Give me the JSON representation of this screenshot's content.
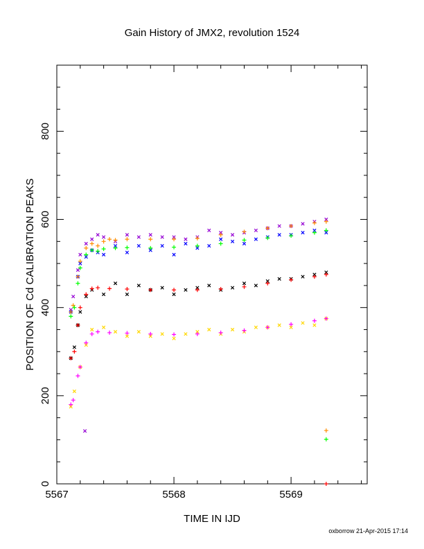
{
  "chart_data": {
    "type": "scatter",
    "title": "Gain History of JMX2, revolution 1524",
    "xlabel": "TIME IN IJD",
    "ylabel": "POSITION OF Cd CALIBRATION PEAKS",
    "xlim": [
      5567.0,
      5569.65
    ],
    "ylim": [
      0,
      950
    ],
    "x_ticks": [
      5567,
      5568,
      5569
    ],
    "y_ticks": [
      0,
      200,
      400,
      600,
      800
    ],
    "x_tick_labels": [
      "5567",
      "5568",
      "5569"
    ],
    "y_tick_labels": [
      "0",
      "200",
      "400",
      "600",
      "800"
    ],
    "grid": false,
    "series": [
      {
        "color": "#9400d3",
        "marker": "x",
        "points": [
          [
            5567.12,
            395
          ],
          [
            5567.14,
            425
          ],
          [
            5567.18,
            485
          ],
          [
            5567.2,
            520
          ],
          [
            5567.25,
            545
          ],
          [
            5567.3,
            555
          ],
          [
            5567.35,
            565
          ],
          [
            5567.4,
            560
          ],
          [
            5567.5,
            550
          ],
          [
            5567.6,
            565
          ],
          [
            5567.7,
            560
          ],
          [
            5567.8,
            565
          ],
          [
            5567.9,
            560
          ],
          [
            5568.0,
            560
          ],
          [
            5568.1,
            555
          ],
          [
            5568.2,
            560
          ],
          [
            5568.3,
            575
          ],
          [
            5568.4,
            570
          ],
          [
            5568.5,
            565
          ],
          [
            5568.6,
            570
          ],
          [
            5568.7,
            575
          ],
          [
            5568.8,
            580
          ],
          [
            5568.9,
            585
          ],
          [
            5569.0,
            585
          ],
          [
            5569.1,
            590
          ],
          [
            5569.2,
            595
          ],
          [
            5569.3,
            600
          ],
          [
            5567.24,
            120
          ]
        ]
      },
      {
        "color": "#0000ff",
        "marker": "x",
        "points": [
          [
            5567.12,
            390
          ],
          [
            5567.18,
            470
          ],
          [
            5567.2,
            500
          ],
          [
            5567.25,
            515
          ],
          [
            5567.3,
            530
          ],
          [
            5567.35,
            525
          ],
          [
            5567.4,
            520
          ],
          [
            5567.5,
            540
          ],
          [
            5567.6,
            525
          ],
          [
            5567.7,
            540
          ],
          [
            5567.8,
            530
          ],
          [
            5567.9,
            540
          ],
          [
            5568.0,
            520
          ],
          [
            5568.1,
            545
          ],
          [
            5568.2,
            535
          ],
          [
            5568.3,
            540
          ],
          [
            5568.4,
            555
          ],
          [
            5568.5,
            550
          ],
          [
            5568.6,
            545
          ],
          [
            5568.7,
            555
          ],
          [
            5568.8,
            560
          ],
          [
            5568.9,
            565
          ],
          [
            5569.0,
            565
          ],
          [
            5569.1,
            570
          ],
          [
            5569.2,
            575
          ],
          [
            5569.3,
            570
          ]
        ]
      },
      {
        "color": "#000000",
        "marker": "x",
        "points": [
          [
            5567.12,
            285
          ],
          [
            5567.15,
            310
          ],
          [
            5567.18,
            360
          ],
          [
            5567.2,
            390
          ],
          [
            5567.25,
            425
          ],
          [
            5567.3,
            440
          ],
          [
            5567.4,
            430
          ],
          [
            5567.5,
            455
          ],
          [
            5567.6,
            430
          ],
          [
            5567.7,
            450
          ],
          [
            5567.8,
            440
          ],
          [
            5567.9,
            445
          ],
          [
            5568.0,
            430
          ],
          [
            5568.1,
            440
          ],
          [
            5568.2,
            445
          ],
          [
            5568.3,
            450
          ],
          [
            5568.4,
            440
          ],
          [
            5568.5,
            445
          ],
          [
            5568.6,
            455
          ],
          [
            5568.7,
            450
          ],
          [
            5568.8,
            460
          ],
          [
            5568.9,
            465
          ],
          [
            5569.0,
            465
          ],
          [
            5569.1,
            470
          ],
          [
            5569.2,
            475
          ],
          [
            5569.3,
            480
          ]
        ]
      },
      {
        "color": "#ffd700",
        "marker": "x",
        "points": [
          [
            5567.12,
            175
          ],
          [
            5567.15,
            210
          ],
          [
            5567.2,
            265
          ],
          [
            5567.25,
            315
          ],
          [
            5567.3,
            350
          ],
          [
            5567.4,
            355
          ],
          [
            5567.5,
            345
          ],
          [
            5567.6,
            335
          ],
          [
            5567.7,
            345
          ],
          [
            5567.8,
            335
          ],
          [
            5567.9,
            340
          ],
          [
            5568.0,
            330
          ],
          [
            5568.1,
            340
          ],
          [
            5568.2,
            345
          ],
          [
            5568.3,
            350
          ],
          [
            5568.4,
            340
          ],
          [
            5568.5,
            350
          ],
          [
            5568.6,
            345
          ],
          [
            5568.7,
            355
          ],
          [
            5568.8,
            355
          ],
          [
            5568.9,
            360
          ],
          [
            5569.0,
            355
          ],
          [
            5569.1,
            365
          ],
          [
            5569.2,
            360
          ],
          [
            5569.3,
            375
          ]
        ]
      },
      {
        "color": "#ff8c00",
        "marker": "+",
        "points": [
          [
            5567.12,
            390
          ],
          [
            5567.14,
            405
          ],
          [
            5567.18,
            470
          ],
          [
            5567.2,
            505
          ],
          [
            5567.25,
            535
          ],
          [
            5567.3,
            545
          ],
          [
            5567.35,
            540
          ],
          [
            5567.4,
            550
          ],
          [
            5567.45,
            555
          ],
          [
            5567.5,
            553
          ],
          [
            5567.6,
            555
          ],
          [
            5567.8,
            555
          ],
          [
            5568.0,
            555
          ],
          [
            5568.2,
            557
          ],
          [
            5568.4,
            565
          ],
          [
            5568.6,
            572
          ],
          [
            5568.8,
            580
          ],
          [
            5569.0,
            585
          ],
          [
            5569.2,
            592
          ],
          [
            5569.3,
            595
          ],
          [
            5569.3,
            121
          ]
        ]
      },
      {
        "color": "#00ff00",
        "marker": "+",
        "points": [
          [
            5567.12,
            380
          ],
          [
            5567.15,
            400
          ],
          [
            5567.18,
            455
          ],
          [
            5567.2,
            490
          ],
          [
            5567.25,
            520
          ],
          [
            5567.3,
            530
          ],
          [
            5567.35,
            528
          ],
          [
            5567.4,
            533
          ],
          [
            5567.5,
            535
          ],
          [
            5567.6,
            536
          ],
          [
            5567.8,
            535
          ],
          [
            5568.0,
            537
          ],
          [
            5568.2,
            540
          ],
          [
            5568.4,
            545
          ],
          [
            5568.6,
            553
          ],
          [
            5568.8,
            558
          ],
          [
            5569.0,
            563
          ],
          [
            5569.2,
            570
          ],
          [
            5569.3,
            575
          ],
          [
            5569.3,
            101
          ]
        ]
      },
      {
        "color": "#ff0000",
        "marker": "+",
        "points": [
          [
            5567.12,
            285
          ],
          [
            5567.15,
            300
          ],
          [
            5567.18,
            360
          ],
          [
            5567.2,
            400
          ],
          [
            5567.25,
            430
          ],
          [
            5567.3,
            443
          ],
          [
            5567.35,
            445
          ],
          [
            5567.45,
            443
          ],
          [
            5567.6,
            442
          ],
          [
            5567.8,
            440
          ],
          [
            5568.0,
            440
          ],
          [
            5568.2,
            440
          ],
          [
            5568.4,
            442
          ],
          [
            5568.6,
            447
          ],
          [
            5568.8,
            455
          ],
          [
            5569.0,
            463
          ],
          [
            5569.2,
            470
          ],
          [
            5569.3,
            475
          ],
          [
            5569.3,
            0
          ]
        ]
      },
      {
        "color": "#ff00ff",
        "marker": "+",
        "points": [
          [
            5567.12,
            180
          ],
          [
            5567.14,
            190
          ],
          [
            5567.18,
            245
          ],
          [
            5567.2,
            265
          ],
          [
            5567.25,
            320
          ],
          [
            5567.3,
            340
          ],
          [
            5567.35,
            345
          ],
          [
            5567.45,
            343
          ],
          [
            5567.6,
            342
          ],
          [
            5567.8,
            340
          ],
          [
            5568.0,
            339
          ],
          [
            5568.2,
            340
          ],
          [
            5568.4,
            343
          ],
          [
            5568.6,
            348
          ],
          [
            5568.8,
            355
          ],
          [
            5569.0,
            362
          ],
          [
            5569.2,
            370
          ],
          [
            5569.3,
            375
          ]
        ]
      }
    ]
  },
  "footer": {
    "credit": "oxborrow 21-Apr-2015 17:14"
  }
}
